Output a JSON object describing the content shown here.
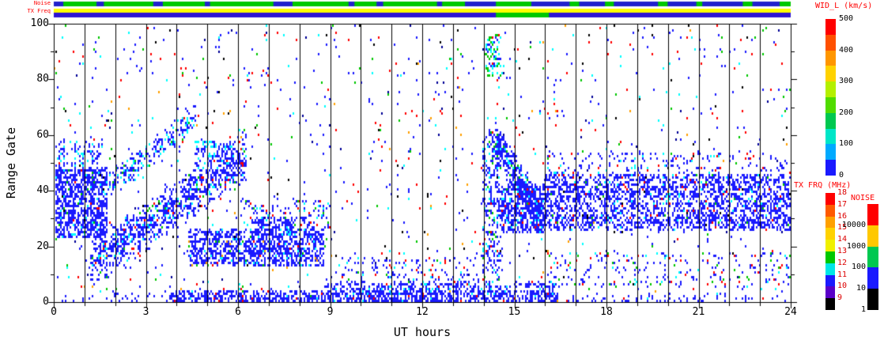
{
  "strips": {
    "noise_label": "Noise",
    "txfreq_label": "TX Freq",
    "label_color": "#ff0000",
    "rows": [
      {
        "name": "noise-strip",
        "segments": [
          [
            0,
            1,
            "#00c800"
          ],
          [
            0,
            0.013,
            "#2222cc"
          ],
          [
            0.058,
            0.068,
            "#2222cc"
          ],
          [
            0.135,
            0.148,
            "#2222cc"
          ],
          [
            0.205,
            0.212,
            "#2222cc"
          ],
          [
            0.298,
            0.324,
            "#2222cc"
          ],
          [
            0.4,
            0.408,
            "#2222cc"
          ],
          [
            0.438,
            0.447,
            "#2222cc"
          ],
          [
            0.52,
            0.527,
            "#2222cc"
          ],
          [
            0.558,
            0.6,
            "#2222cc"
          ],
          [
            0.648,
            1,
            "#2222cc"
          ],
          [
            0.7,
            0.713,
            "#00c800"
          ],
          [
            0.748,
            0.76,
            "#00c800"
          ],
          [
            0.82,
            0.833,
            "#00c800"
          ],
          [
            0.872,
            0.88,
            "#00c800"
          ],
          [
            0.935,
            0.948,
            "#00c800"
          ],
          [
            0.985,
            1,
            "#00c800"
          ]
        ]
      },
      {
        "name": "txfreq-strip-upper",
        "segments": [
          [
            0,
            1,
            "#ffff00"
          ]
        ]
      },
      {
        "name": "txfreq-strip-lower",
        "segments": [
          [
            0,
            1,
            "#2d14d2"
          ],
          [
            0.6,
            0.672,
            "#00c800"
          ]
        ]
      }
    ]
  },
  "chart_data": {
    "type": "scatter",
    "title": "",
    "xlabel": "UT hours",
    "ylabel": "Range Gate",
    "xlim": [
      0,
      24
    ],
    "ylim": [
      0,
      100
    ],
    "x_tick_labels": [
      "0",
      "3",
      "6",
      "9",
      "12",
      "15",
      "18",
      "21",
      "24"
    ],
    "x_minor_step": 1,
    "y_tick_labels": [
      "0",
      "20",
      "40",
      "60",
      "80",
      "100"
    ],
    "y_minor_step": 10,
    "y_major_step": 20,
    "grid_hour_lines": true,
    "seed": 42,
    "background_specks": {
      "count": 1150,
      "colors": [
        [
          "#1a1aff",
          0.42
        ],
        [
          "#ff0000",
          0.16
        ],
        [
          "#00ffff",
          0.12
        ],
        [
          "#00c800",
          0.1
        ],
        [
          "#000000",
          0.09
        ],
        [
          "#ffa000",
          0.05
        ],
        [
          "#000096",
          0.06
        ]
      ]
    },
    "features": [
      {
        "shape": "blob",
        "t": [
          0.05,
          1.75
        ],
        "g": [
          23,
          48
        ],
        "count": 900,
        "colors": [
          [
            "#1a1aff",
            0.9
          ],
          [
            "#00ffff",
            0.05
          ],
          [
            "#00c800",
            0.02
          ],
          [
            "#ff0000",
            0.02
          ],
          [
            "#000000",
            0.01
          ]
        ]
      },
      {
        "shape": "blob",
        "t": [
          0.05,
          1.6
        ],
        "g": [
          48,
          58
        ],
        "count": 90,
        "colors": [
          [
            "#1a1aff",
            0.75
          ],
          [
            "#00ffff",
            0.25
          ]
        ]
      },
      {
        "shape": "diag",
        "t": [
          1.2,
          6.3
        ],
        "gstart": 14,
        "gend": 53,
        "halfwidth": 7,
        "count": 1000,
        "colors": [
          [
            "#1a1aff",
            0.86
          ],
          [
            "#00ffff",
            0.08
          ],
          [
            "#00c800",
            0.03
          ],
          [
            "#ff0000",
            0.03
          ]
        ]
      },
      {
        "shape": "diag",
        "t": [
          1.8,
          4.6
        ],
        "gstart": 42,
        "gend": 66,
        "halfwidth": 4,
        "count": 230,
        "colors": [
          [
            "#1a1aff",
            0.7
          ],
          [
            "#00ffff",
            0.25
          ],
          [
            "#00c800",
            0.05
          ]
        ]
      },
      {
        "shape": "blob",
        "t": [
          4.4,
          8.8
        ],
        "g": [
          13,
          26
        ],
        "count": 1000,
        "colors": [
          [
            "#1a1aff",
            0.9
          ],
          [
            "#00ffff",
            0.05
          ],
          [
            "#ff0000",
            0.02
          ],
          [
            "#00c800",
            0.02
          ],
          [
            "#ffa000",
            0.01
          ]
        ]
      },
      {
        "shape": "blob",
        "t": [
          4.6,
          5.9
        ],
        "g": [
          50,
          58
        ],
        "count": 100,
        "colors": [
          [
            "#1a1aff",
            0.8
          ],
          [
            "#00ffff",
            0.2
          ]
        ]
      },
      {
        "shape": "blob",
        "t": [
          3.8,
          16.4
        ],
        "g": [
          0,
          4
        ],
        "count": 900,
        "colors": [
          [
            "#1a1aff",
            0.93
          ],
          [
            "#00ffff",
            0.04
          ],
          [
            "#ff0000",
            0.03
          ]
        ]
      },
      {
        "shape": "blob",
        "t": [
          8.8,
          16.3
        ],
        "g": [
          3,
          7
        ],
        "count": 300,
        "colors": [
          [
            "#1a1aff",
            0.9
          ],
          [
            "#00ffff",
            0.1
          ]
        ]
      },
      {
        "shape": "blob",
        "t": [
          0.0,
          24.0
        ],
        "g": [
          0,
          3
        ],
        "count": 200,
        "colors": [
          [
            "#1a1aff",
            0.95
          ],
          [
            "#ff0000",
            0.05
          ]
        ]
      },
      {
        "shape": "blob",
        "t": [
          13.95,
          14.6
        ],
        "g": [
          8,
          62
        ],
        "count": 280,
        "colors": [
          [
            "#1a1aff",
            0.75
          ],
          [
            "#00ffff",
            0.14
          ],
          [
            "#00c800",
            0.07
          ],
          [
            "#ff0000",
            0.04
          ]
        ]
      },
      {
        "shape": "blob",
        "t": [
          14.05,
          14.55
        ],
        "g": [
          80,
          96
        ],
        "count": 80,
        "colors": [
          [
            "#00c800",
            0.45
          ],
          [
            "#00ffff",
            0.3
          ],
          [
            "#1a1aff",
            0.2
          ],
          [
            "#ff0000",
            0.05
          ]
        ]
      },
      {
        "shape": "diag",
        "t": [
          14.35,
          15.9
        ],
        "gstart": 58,
        "gend": 30,
        "halfwidth": 6,
        "count": 450,
        "colors": [
          [
            "#1a1aff",
            0.88
          ],
          [
            "#00ffff",
            0.08
          ],
          [
            "#00c800",
            0.04
          ]
        ]
      },
      {
        "shape": "blob",
        "t": [
          14.6,
          16.0
        ],
        "g": [
          25,
          42
        ],
        "count": 450,
        "colors": [
          [
            "#1a1aff",
            0.92
          ],
          [
            "#00ffff",
            0.05
          ],
          [
            "#ff0000",
            0.03
          ]
        ]
      },
      {
        "shape": "blob",
        "t": [
          15.95,
          24.0
        ],
        "g": [
          26,
          46
        ],
        "count": 2300,
        "colors": [
          [
            "#1a1aff",
            0.93
          ],
          [
            "#00ffff",
            0.03
          ],
          [
            "#ff0000",
            0.02
          ],
          [
            "#00c800",
            0.01
          ],
          [
            "#000000",
            0.01
          ]
        ]
      },
      {
        "shape": "blob",
        "t": [
          16.0,
          24.0
        ],
        "g": [
          46,
          54
        ],
        "count": 170,
        "colors": [
          [
            "#1a1aff",
            0.8
          ],
          [
            "#00ffff",
            0.1
          ],
          [
            "#ff0000",
            0.1
          ]
        ]
      },
      {
        "shape": "blob",
        "t": [
          16.0,
          24.0
        ],
        "g": [
          5,
          18
        ],
        "count": 220,
        "colors": [
          [
            "#1a1aff",
            0.7
          ],
          [
            "#ff0000",
            0.12
          ],
          [
            "#00ffff",
            0.1
          ],
          [
            "#00c800",
            0.08
          ]
        ]
      },
      {
        "shape": "blob",
        "t": [
          9.3,
          13.8
        ],
        "g": [
          4,
          16
        ],
        "count": 150,
        "colors": [
          [
            "#1a1aff",
            0.8
          ],
          [
            "#00ffff",
            0.1
          ],
          [
            "#ff0000",
            0.1
          ]
        ]
      },
      {
        "shape": "blob",
        "t": [
          6.1,
          9.0
        ],
        "g": [
          27,
          37
        ],
        "count": 130,
        "colors": [
          [
            "#1a1aff",
            0.65
          ],
          [
            "#00ffff",
            0.15
          ],
          [
            "#ff0000",
            0.12
          ],
          [
            "#00c800",
            0.08
          ]
        ]
      },
      {
        "shape": "blob",
        "t": [
          6.6,
          7.8
        ],
        "g": [
          24,
          30
        ],
        "count": 120,
        "colors": [
          [
            "#1a1aff",
            0.9
          ],
          [
            "#00ffff",
            0.1
          ]
        ]
      }
    ]
  },
  "colorbars": {
    "wid": {
      "title": "WID_L (km/s)",
      "title_color": "#ff0000",
      "labels": [
        "500",
        "400",
        "300",
        "200",
        "100",
        "0"
      ],
      "label_color": "#000000",
      "colors_top_to_bottom": [
        "#ff0000",
        "#ff5000",
        "#ff9600",
        "#ffd200",
        "#b4f000",
        "#50dc00",
        "#00c850",
        "#00e6c8",
        "#00aaff",
        "#1a1aff"
      ]
    },
    "txfrq": {
      "title": "TX FRQ (MHz)",
      "title_color": "#ff0000",
      "labels": [
        "18",
        "17",
        "16",
        "15",
        "14",
        "13",
        "12",
        "11",
        "10",
        "9"
      ],
      "label_color": "#dc0000",
      "colors_top_to_bottom": [
        "#ff0000",
        "#ff5a00",
        "#ffa000",
        "#ffd200",
        "#f0f000",
        "#00c800",
        "#00e6e6",
        "#1a1aff",
        "#5a00c8",
        "#000000"
      ]
    },
    "noise": {
      "title": "NOISE",
      "title_color": "#ff0000",
      "labels": [
        "10000",
        "1000",
        "100",
        "10",
        "1"
      ],
      "label_color": "#000000",
      "colors_top_to_bottom": [
        "#ff0000",
        "#ffc800",
        "#00c850",
        "#1a1aff",
        "#000000"
      ]
    }
  }
}
